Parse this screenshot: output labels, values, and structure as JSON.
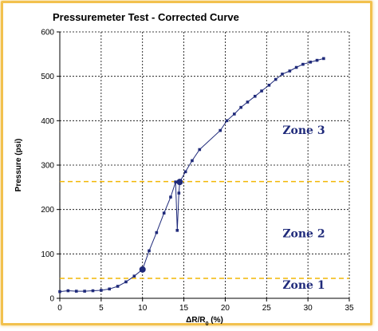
{
  "chart_data": {
    "type": "line",
    "title": "Pressuremeter Test - Corrected Curve",
    "xlabel": "ΔR/R0 (%)",
    "ylabel": "Pressure (psi)",
    "xlim": [
      0,
      35
    ],
    "ylim": [
      0,
      600
    ],
    "xticks": [
      0,
      5,
      10,
      15,
      20,
      25,
      30,
      35
    ],
    "yticks": [
      0,
      100,
      200,
      300,
      400,
      500,
      600
    ],
    "grid": true,
    "series": [
      {
        "color": "#1f2a7a",
        "x": [
          0,
          1,
          2,
          3,
          4,
          5,
          6,
          7,
          8,
          9,
          10,
          10.8,
          11.7,
          12.6,
          13.4,
          14.0,
          14.2,
          14.4,
          14.5,
          15.2,
          16.0,
          16.9,
          19.4,
          20.2,
          21.1,
          21.9,
          22.7,
          23.6,
          24.4,
          25.3,
          26.1,
          26.9,
          27.8,
          28.6,
          29.4,
          30.3,
          31.1,
          31.9
        ],
        "y": [
          15,
          17,
          16,
          16,
          17,
          18,
          21,
          27,
          37,
          50,
          65,
          107,
          148,
          192,
          228,
          262,
          153,
          237,
          262,
          285,
          310,
          335,
          378,
          400,
          415,
          430,
          442,
          455,
          467,
          480,
          493,
          505,
          512,
          520,
          527,
          532,
          536,
          540
        ],
        "highlighted_points": [
          [
            10,
            65
          ],
          [
            14.5,
            262
          ]
        ]
      }
    ],
    "reference_lines": [
      {
        "y": 45,
        "color": "#f2b705"
      },
      {
        "y": 263,
        "color": "#f2b705"
      }
    ],
    "annotations": [
      {
        "text": "Zone 1",
        "x": 29.5,
        "y": 22
      },
      {
        "text": "Zone 2",
        "x": 29.5,
        "y": 137
      },
      {
        "text": "Zone 3",
        "x": 29.5,
        "y": 370
      }
    ]
  }
}
